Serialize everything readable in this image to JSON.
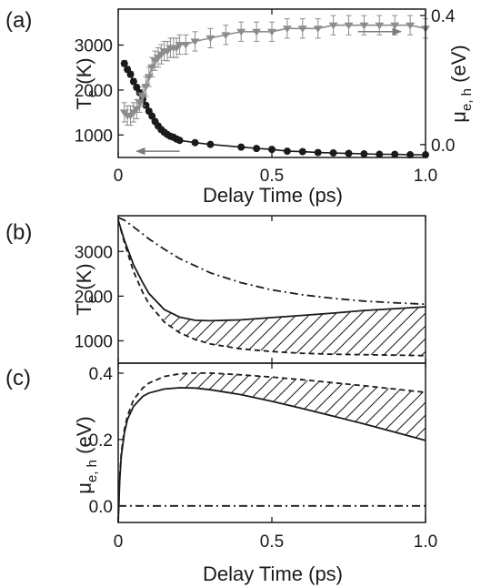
{
  "chart_data": [
    {
      "type": "line",
      "panel_label": "(a)",
      "xlabel": "Delay Time (ps)",
      "ylabel": "T",
      "ylabel_sub": "e",
      "ylabel_unit": " (K)",
      "y2label": "μ",
      "y2label_sub": "e, h",
      "y2label_unit": " (eV)",
      "xlim": [
        0,
        1.0
      ],
      "ylim": [
        500,
        3800
      ],
      "y2lim": [
        -0.04,
        0.42
      ],
      "xticks": [
        "0",
        "0.5",
        "1.0"
      ],
      "yticks": [
        "1000",
        "2000",
        "3000"
      ],
      "y2ticks": [
        "0.0",
        "0.4"
      ],
      "colors": {
        "temperature": "#1a1a1a",
        "potential": "#8c8c8c"
      },
      "series": [
        {
          "axis": "left",
          "marker": "circle",
          "x": [
            0.02,
            0.03,
            0.04,
            0.05,
            0.06,
            0.07,
            0.08,
            0.09,
            0.1,
            0.11,
            0.12,
            0.13,
            0.14,
            0.15,
            0.16,
            0.17,
            0.18,
            0.19,
            0.2,
            0.25,
            0.3,
            0.4,
            0.45,
            0.5,
            0.55,
            0.6,
            0.65,
            0.7,
            0.75,
            0.8,
            0.85,
            0.9,
            0.95,
            1.0
          ],
          "y": [
            2590,
            2460,
            2350,
            2190,
            2060,
            1940,
            1800,
            1660,
            1530,
            1420,
            1300,
            1200,
            1120,
            1060,
            1010,
            970,
            950,
            910,
            880,
            830,
            790,
            730,
            700,
            680,
            640,
            630,
            610,
            600,
            590,
            580,
            570,
            570,
            560,
            560
          ],
          "yerr": [
            60,
            60,
            60,
            60,
            60,
            50,
            50,
            50,
            50,
            50,
            50,
            50,
            50,
            50,
            40,
            40,
            40,
            40,
            40,
            40,
            40,
            40,
            40,
            40,
            40,
            40,
            40,
            40,
            40,
            40,
            40,
            40,
            40,
            40
          ]
        },
        {
          "axis": "right",
          "marker": "triangle-down",
          "x": [
            0.02,
            0.03,
            0.04,
            0.05,
            0.06,
            0.07,
            0.08,
            0.09,
            0.1,
            0.11,
            0.12,
            0.13,
            0.14,
            0.15,
            0.16,
            0.17,
            0.18,
            0.19,
            0.2,
            0.22,
            0.25,
            0.3,
            0.35,
            0.4,
            0.45,
            0.5,
            0.55,
            0.6,
            0.65,
            0.7,
            0.75,
            0.8,
            0.85,
            0.9,
            0.95,
            1.0
          ],
          "y": [
            0.1,
            0.09,
            0.09,
            0.1,
            0.11,
            0.13,
            0.15,
            0.18,
            0.21,
            0.24,
            0.26,
            0.27,
            0.28,
            0.29,
            0.29,
            0.3,
            0.3,
            0.3,
            0.31,
            0.31,
            0.32,
            0.33,
            0.34,
            0.35,
            0.35,
            0.35,
            0.36,
            0.36,
            0.36,
            0.37,
            0.37,
            0.37,
            0.37,
            0.37,
            0.37,
            0.36
          ],
          "yerr": [
            0.03,
            0.03,
            0.03,
            0.03,
            0.03,
            0.03,
            0.03,
            0.03,
            0.03,
            0.03,
            0.03,
            0.03,
            0.03,
            0.03,
            0.03,
            0.03,
            0.03,
            0.03,
            0.03,
            0.03,
            0.03,
            0.03,
            0.03,
            0.03,
            0.03,
            0.03,
            0.03,
            0.03,
            0.03,
            0.03,
            0.03,
            0.03,
            0.03,
            0.03,
            0.03,
            0.03
          ]
        }
      ],
      "arrows": [
        {
          "from": [
            0.2,
            640
          ],
          "to": [
            0.06,
            640
          ]
        },
        {
          "from": [
            0.78,
            3300
          ],
          "to": [
            0.92,
            3300
          ]
        }
      ]
    },
    {
      "type": "line",
      "panel_label": "(b)",
      "ylabel": "T",
      "ylabel_sub": "e",
      "ylabel_unit": " (K)",
      "xlim": [
        0,
        1.0
      ],
      "ylim": [
        500,
        3800
      ],
      "yticks": [
        "1000",
        "2000",
        "3000"
      ],
      "hatch_between": [
        "upper",
        "lower"
      ],
      "series": [
        {
          "id": "dashdot",
          "style": "dash-dot",
          "x": [
            0,
            0.02,
            0.05,
            0.1,
            0.15,
            0.2,
            0.3,
            0.4,
            0.5,
            0.6,
            0.7,
            0.8,
            0.9,
            1.0
          ],
          "y": [
            3760,
            3700,
            3550,
            3280,
            3050,
            2840,
            2520,
            2300,
            2140,
            2030,
            1950,
            1890,
            1850,
            1820
          ]
        },
        {
          "id": "upper",
          "style": "solid",
          "x": [
            0,
            0.02,
            0.05,
            0.08,
            0.1,
            0.15,
            0.2,
            0.25,
            0.3,
            0.4,
            0.5,
            0.6,
            0.7,
            0.8,
            0.9,
            1.0
          ],
          "y": [
            3700,
            3250,
            2700,
            2300,
            2060,
            1700,
            1530,
            1460,
            1450,
            1470,
            1520,
            1570,
            1620,
            1680,
            1720,
            1760
          ]
        },
        {
          "id": "lower",
          "style": "dashed",
          "x": [
            0,
            0.02,
            0.05,
            0.08,
            0.1,
            0.15,
            0.2,
            0.25,
            0.3,
            0.4,
            0.5,
            0.6,
            0.7,
            0.8,
            0.9,
            1.0
          ],
          "y": [
            3700,
            3200,
            2550,
            2080,
            1830,
            1420,
            1180,
            1030,
            930,
            820,
            760,
            720,
            700,
            690,
            680,
            670
          ]
        }
      ]
    },
    {
      "type": "line",
      "panel_label": "(c)",
      "xlabel": "Delay Time (ps)",
      "ylabel": "μ",
      "ylabel_sub": "e, h",
      "ylabel_unit": " (eV)",
      "xlim": [
        0,
        1.0
      ],
      "ylim": [
        -0.05,
        0.43
      ],
      "xticks": [
        "0",
        "0.5",
        "1.0"
      ],
      "yticks": [
        "0.0",
        "0.2",
        "0.4"
      ],
      "hatch_between": [
        "upper",
        "lower"
      ],
      "series": [
        {
          "id": "upper",
          "style": "dashed",
          "x": [
            0,
            0.005,
            0.01,
            0.02,
            0.03,
            0.05,
            0.08,
            0.1,
            0.15,
            0.2,
            0.25,
            0.3,
            0.4,
            0.5,
            0.6,
            0.7,
            0.8,
            0.9,
            1.0
          ],
          "y": [
            -0.05,
            0.09,
            0.16,
            0.23,
            0.27,
            0.32,
            0.355,
            0.37,
            0.39,
            0.398,
            0.4,
            0.4,
            0.395,
            0.388,
            0.38,
            0.371,
            0.362,
            0.352,
            0.342
          ]
        },
        {
          "id": "lower",
          "style": "solid",
          "x": [
            0,
            0.005,
            0.01,
            0.02,
            0.03,
            0.05,
            0.08,
            0.1,
            0.15,
            0.2,
            0.25,
            0.3,
            0.4,
            0.5,
            0.6,
            0.7,
            0.8,
            0.9,
            1.0
          ],
          "y": [
            -0.05,
            0.08,
            0.15,
            0.22,
            0.26,
            0.3,
            0.33,
            0.34,
            0.352,
            0.356,
            0.355,
            0.35,
            0.335,
            0.315,
            0.293,
            0.27,
            0.247,
            0.222,
            0.197
          ]
        },
        {
          "id": "zero",
          "style": "dash-dot",
          "x": [
            0,
            1.0
          ],
          "y": [
            0.0,
            0.0
          ]
        }
      ]
    }
  ]
}
